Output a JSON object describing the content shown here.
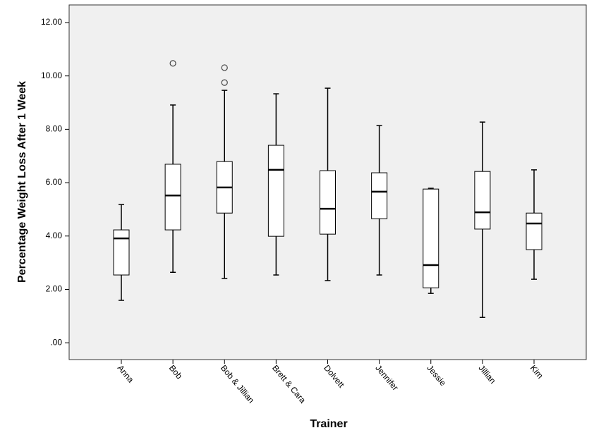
{
  "chart_data": {
    "type": "box",
    "x_label": "Trainer",
    "y_label": "Percentage Weight Loss After 1 Week",
    "categories": [
      "Anna",
      "Bob",
      "Bob & Jillian",
      "Brett & Cara",
      "Dolvett",
      "Jennifer",
      "Jessie",
      "Jillian",
      "Kim"
    ],
    "min": [
      1.59,
      2.64,
      2.41,
      2.54,
      2.33,
      2.54,
      1.85,
      0.95,
      2.38
    ],
    "q1": [
      2.54,
      4.23,
      4.86,
      3.99,
      4.07,
      4.65,
      2.06,
      4.26,
      3.49
    ],
    "median": [
      3.91,
      5.52,
      5.82,
      6.48,
      5.02,
      5.66,
      2.91,
      4.89,
      4.47
    ],
    "q3": [
      4.23,
      6.69,
      6.79,
      7.4,
      6.45,
      6.37,
      5.76,
      6.42,
      4.86
    ],
    "max": [
      5.18,
      8.91,
      9.46,
      9.33,
      9.54,
      8.14,
      5.79,
      8.27,
      6.48
    ],
    "outliers": [
      [],
      [
        10.47
      ],
      [
        10.31,
        9.75
      ],
      [],
      [],
      [],
      [],
      [],
      []
    ],
    "ylim": [
      -0.63,
      12.66
    ],
    "yticks": [
      {
        "value": 0,
        "label": ".00"
      },
      {
        "value": 2,
        "label": "2.00"
      },
      {
        "value": 4,
        "label": "4.00"
      },
      {
        "value": 6,
        "label": "6.00"
      },
      {
        "value": 8,
        "label": "8.00"
      },
      {
        "value": 10,
        "label": "10.00"
      },
      {
        "value": 12,
        "label": "12.00"
      }
    ],
    "plot_background": "#f0f0f0",
    "box_color": "#ffffff",
    "line_color": "#000000"
  }
}
